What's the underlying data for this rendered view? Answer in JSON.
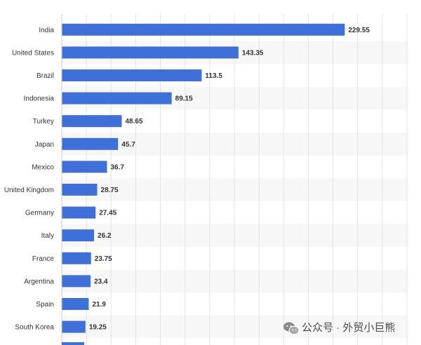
{
  "chart_data": {
    "type": "bar",
    "orientation": "horizontal",
    "categories": [
      "India",
      "United States",
      "Brazil",
      "Indonesia",
      "Turkey",
      "Japan",
      "Mexico",
      "United Kingdom",
      "Germany",
      "Italy",
      "France",
      "Argentina",
      "Spain",
      "South Korea"
    ],
    "values": [
      229.55,
      143.35,
      113.5,
      89.15,
      48.65,
      45.7,
      36.7,
      28.75,
      27.45,
      26.2,
      23.75,
      23.4,
      21.9,
      19.25
    ],
    "value_labels": [
      "229.55",
      "143.35",
      "113.5",
      "89.15",
      "48.65",
      "45.7",
      "36.7",
      "28.75",
      "27.45",
      "26.2",
      "23.75",
      "23.4",
      "21.9",
      "19.25"
    ],
    "title": "",
    "xlabel": "",
    "ylabel": "",
    "xlim": [
      0,
      280
    ],
    "grid": true,
    "bar_color": "#3f6fd8",
    "truncated_bar_below": true
  },
  "watermark": {
    "text": "公众号 · 外贸小巨熊",
    "icon": "wechat-icon",
    "color": "#4a4a4a"
  }
}
